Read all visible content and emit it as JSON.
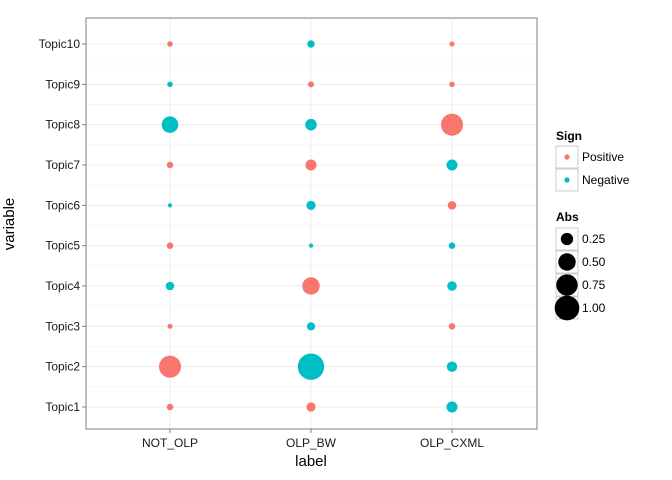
{
  "chart_data": {
    "type": "scatter",
    "title": "",
    "xlabel": "label",
    "ylabel": "variable",
    "x_categories": [
      "NOT_OLP",
      "OLP_BW",
      "OLP_CXML"
    ],
    "y_categories": [
      "Topic1",
      "Topic2",
      "Topic3",
      "Topic4",
      "Topic5",
      "Topic6",
      "Topic7",
      "Topic8",
      "Topic9",
      "Topic10"
    ],
    "grid": true,
    "colors": {
      "Positive": "#F8766D",
      "Negative": "#00BFC4"
    },
    "points": [
      {
        "x": "NOT_OLP",
        "y": "Topic10",
        "sign": "Positive",
        "abs": 0.05
      },
      {
        "x": "NOT_OLP",
        "y": "Topic9",
        "sign": "Negative",
        "abs": 0.05
      },
      {
        "x": "NOT_OLP",
        "y": "Topic8",
        "sign": "Negative",
        "abs": 0.45
      },
      {
        "x": "NOT_OLP",
        "y": "Topic7",
        "sign": "Positive",
        "abs": 0.07
      },
      {
        "x": "NOT_OLP",
        "y": "Topic6",
        "sign": "Negative",
        "abs": 0.03
      },
      {
        "x": "NOT_OLP",
        "y": "Topic5",
        "sign": "Positive",
        "abs": 0.07
      },
      {
        "x": "NOT_OLP",
        "y": "Topic4",
        "sign": "Negative",
        "abs": 0.12
      },
      {
        "x": "NOT_OLP",
        "y": "Topic3",
        "sign": "Positive",
        "abs": 0.04
      },
      {
        "x": "NOT_OLP",
        "y": "Topic2",
        "sign": "Positive",
        "abs": 0.8
      },
      {
        "x": "NOT_OLP",
        "y": "Topic1",
        "sign": "Positive",
        "abs": 0.07
      },
      {
        "x": "OLP_BW",
        "y": "Topic10",
        "sign": "Negative",
        "abs": 0.09
      },
      {
        "x": "OLP_BW",
        "y": "Topic9",
        "sign": "Positive",
        "abs": 0.06
      },
      {
        "x": "OLP_BW",
        "y": "Topic8",
        "sign": "Negative",
        "abs": 0.22
      },
      {
        "x": "OLP_BW",
        "y": "Topic7",
        "sign": "Positive",
        "abs": 0.2
      },
      {
        "x": "OLP_BW",
        "y": "Topic6",
        "sign": "Negative",
        "abs": 0.14
      },
      {
        "x": "OLP_BW",
        "y": "Topic5",
        "sign": "Negative",
        "abs": 0.03
      },
      {
        "x": "OLP_BW",
        "y": "Topic4",
        "sign": "Positive",
        "abs": 0.5
      },
      {
        "x": "OLP_BW",
        "y": "Topic3",
        "sign": "Negative",
        "abs": 0.11
      },
      {
        "x": "OLP_BW",
        "y": "Topic2",
        "sign": "Negative",
        "abs": 1.15
      },
      {
        "x": "OLP_BW",
        "y": "Topic1",
        "sign": "Positive",
        "abs": 0.14
      },
      {
        "x": "OLP_CXML",
        "y": "Topic10",
        "sign": "Positive",
        "abs": 0.04
      },
      {
        "x": "OLP_CXML",
        "y": "Topic9",
        "sign": "Positive",
        "abs": 0.05
      },
      {
        "x": "OLP_CXML",
        "y": "Topic8",
        "sign": "Positive",
        "abs": 0.8
      },
      {
        "x": "OLP_CXML",
        "y": "Topic7",
        "sign": "Negative",
        "abs": 0.2
      },
      {
        "x": "OLP_CXML",
        "y": "Topic6",
        "sign": "Positive",
        "abs": 0.12
      },
      {
        "x": "OLP_CXML",
        "y": "Topic5",
        "sign": "Negative",
        "abs": 0.07
      },
      {
        "x": "OLP_CXML",
        "y": "Topic4",
        "sign": "Negative",
        "abs": 0.15
      },
      {
        "x": "OLP_CXML",
        "y": "Topic3",
        "sign": "Positive",
        "abs": 0.07
      },
      {
        "x": "OLP_CXML",
        "y": "Topic2",
        "sign": "Negative",
        "abs": 0.18
      },
      {
        "x": "OLP_CXML",
        "y": "Topic1",
        "sign": "Negative",
        "abs": 0.2
      }
    ],
    "legend": {
      "color": {
        "title": "Sign",
        "items": [
          "Positive",
          "Negative"
        ]
      },
      "size": {
        "title": "Abs",
        "values": [
          0.25,
          0.5,
          0.75,
          1.0
        ],
        "labels": [
          "0.25",
          "0.50",
          "0.75",
          "1.00"
        ]
      },
      "position": "right"
    }
  }
}
